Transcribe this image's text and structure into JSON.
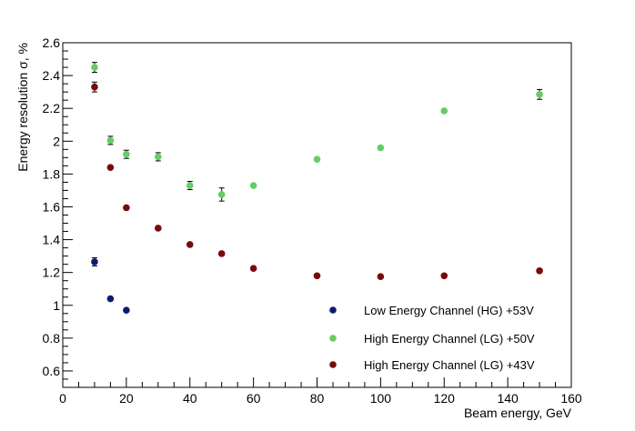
{
  "chart_data": {
    "type": "scatter",
    "xlabel": "Beam energy, GeV",
    "ylabel": "Energy resolution σ, %",
    "xlim": [
      0,
      160
    ],
    "ylim": [
      0.5,
      2.6
    ],
    "x_ticks": [
      0,
      20,
      40,
      60,
      80,
      100,
      120,
      140,
      160
    ],
    "x_tick_labels": [
      "0",
      "20",
      "40",
      "60",
      "80",
      "100",
      "120",
      "140",
      "160"
    ],
    "y_ticks": [
      0.6,
      0.8,
      1.0,
      1.2,
      1.4,
      1.6,
      1.8,
      2.0,
      2.2,
      2.4,
      2.6
    ],
    "y_tick_labels": [
      "0.6",
      "0.8",
      "1",
      "1.2",
      "1.4",
      "1.6",
      "1.8",
      "2",
      "2.2",
      "2.4",
      "2.6"
    ],
    "grid": false,
    "legend_position": "bottom-right",
    "series": [
      {
        "name": "Low Energy Channel (HG) +53V",
        "color": "#0d1b6e",
        "points": [
          {
            "x": 10,
            "y": 1.265,
            "err": 0.025
          },
          {
            "x": 15,
            "y": 1.04,
            "err": 0.008
          },
          {
            "x": 20,
            "y": 0.97,
            "err": 0.008
          }
        ]
      },
      {
        "name": "High Energy Channel (LG) +50V",
        "color": "#66cc66",
        "points": [
          {
            "x": 10,
            "y": 2.45,
            "err": 0.03
          },
          {
            "x": 15,
            "y": 2.005,
            "err": 0.025
          },
          {
            "x": 20,
            "y": 1.92,
            "err": 0.025
          },
          {
            "x": 30,
            "y": 1.905,
            "err": 0.025
          },
          {
            "x": 40,
            "y": 1.73,
            "err": 0.025
          },
          {
            "x": 50,
            "y": 1.675,
            "err": 0.04
          },
          {
            "x": 60,
            "y": 1.73,
            "err": 0.01
          },
          {
            "x": 80,
            "y": 1.89,
            "err": 0.01
          },
          {
            "x": 100,
            "y": 1.96,
            "err": 0.02
          },
          {
            "x": 120,
            "y": 2.185,
            "err": 0.02
          },
          {
            "x": 150,
            "y": 2.285,
            "err": 0.03
          }
        ]
      },
      {
        "name": "High Energy Channel (LG) +43V",
        "color": "#7a0a0a",
        "points": [
          {
            "x": 10,
            "y": 2.33,
            "err": 0.03
          },
          {
            "x": 15,
            "y": 1.84,
            "err": 0.01
          },
          {
            "x": 20,
            "y": 1.595,
            "err": 0.01
          },
          {
            "x": 30,
            "y": 1.47,
            "err": 0.008
          },
          {
            "x": 40,
            "y": 1.37,
            "err": 0.008
          },
          {
            "x": 50,
            "y": 1.315,
            "err": 0.008
          },
          {
            "x": 60,
            "y": 1.225,
            "err": 0.008
          },
          {
            "x": 80,
            "y": 1.18,
            "err": 0.008
          },
          {
            "x": 100,
            "y": 1.175,
            "err": 0.008
          },
          {
            "x": 120,
            "y": 1.18,
            "err": 0.008
          },
          {
            "x": 150,
            "y": 1.21,
            "err": 0.008
          }
        ]
      }
    ]
  }
}
